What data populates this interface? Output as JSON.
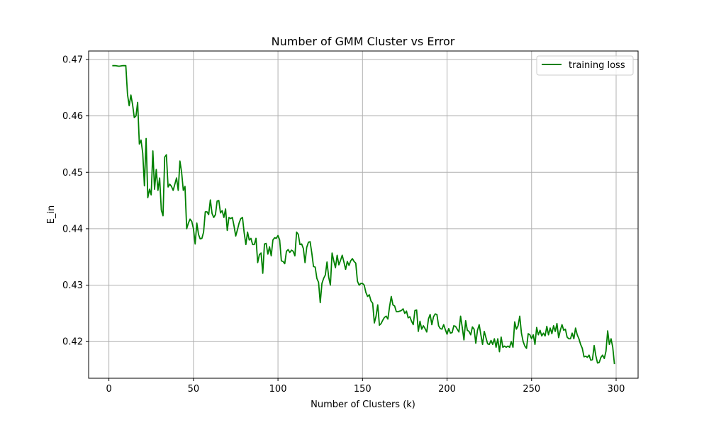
{
  "chart_data": {
    "type": "line",
    "title": "Number of GMM Cluster vs Error",
    "xlabel": "Number of Clusters (k)",
    "ylabel": "E_in",
    "xlim": [
      -12,
      313
    ],
    "ylim": [
      0.4135,
      0.4715
    ],
    "xticks": [
      0,
      50,
      100,
      150,
      200,
      250,
      300
    ],
    "yticks": [
      0.42,
      0.43,
      0.44,
      0.45,
      0.46,
      0.47
    ],
    "ytick_labels": [
      "0.42",
      "0.43",
      "0.44",
      "0.45",
      "0.46",
      "0.47"
    ],
    "grid": true,
    "legend": {
      "position": "top-right",
      "entries": [
        "training loss"
      ]
    },
    "series": [
      {
        "name": "training loss",
        "color": "#008000",
        "points": [
          [
            2,
            0.4689
          ],
          [
            4,
            0.4689
          ],
          [
            6,
            0.4688
          ],
          [
            8,
            0.4689
          ],
          [
            9,
            0.4689
          ],
          [
            10,
            0.4689
          ],
          [
            11,
            0.4638
          ],
          [
            12,
            0.4618
          ],
          [
            13,
            0.4637
          ],
          [
            14,
            0.462
          ],
          [
            15,
            0.4597
          ],
          [
            16,
            0.46
          ],
          [
            17,
            0.4624
          ],
          [
            18,
            0.455
          ],
          [
            19,
            0.4557
          ],
          [
            20,
            0.4534
          ],
          [
            21,
            0.4476
          ],
          [
            22,
            0.456
          ],
          [
            23,
            0.4455
          ],
          [
            24,
            0.447
          ],
          [
            25,
            0.446
          ],
          [
            26,
            0.4538
          ],
          [
            27,
            0.447
          ],
          [
            28,
            0.4505
          ],
          [
            29,
            0.4468
          ],
          [
            30,
            0.449
          ],
          [
            31,
            0.4433
          ],
          [
            32,
            0.4423
          ],
          [
            33,
            0.4527
          ],
          [
            34,
            0.4531
          ],
          [
            35,
            0.4474
          ],
          [
            36,
            0.4479
          ],
          [
            37,
            0.4475
          ],
          [
            38,
            0.4468
          ],
          [
            39,
            0.4479
          ],
          [
            40,
            0.449
          ],
          [
            41,
            0.4468
          ],
          [
            42,
            0.452
          ],
          [
            43,
            0.45
          ],
          [
            44,
            0.4468
          ],
          [
            45,
            0.4475
          ],
          [
            46,
            0.44
          ],
          [
            47,
            0.441
          ],
          [
            48,
            0.4417
          ],
          [
            49,
            0.4413
          ],
          [
            50,
            0.44
          ],
          [
            51,
            0.4373
          ],
          [
            52,
            0.441
          ],
          [
            53,
            0.439
          ],
          [
            54,
            0.4382
          ],
          [
            55,
            0.4383
          ],
          [
            56,
            0.4394
          ],
          [
            57,
            0.443
          ],
          [
            58,
            0.443
          ],
          [
            59,
            0.4425
          ],
          [
            60,
            0.4451
          ],
          [
            61,
            0.4427
          ],
          [
            62,
            0.442
          ],
          [
            63,
            0.4425
          ],
          [
            64,
            0.4449
          ],
          [
            65,
            0.445
          ],
          [
            66,
            0.4428
          ],
          [
            67,
            0.4432
          ],
          [
            68,
            0.442
          ],
          [
            69,
            0.4435
          ],
          [
            70,
            0.4397
          ],
          [
            71,
            0.442
          ],
          [
            72,
            0.4418
          ],
          [
            73,
            0.442
          ],
          [
            74,
            0.4405
          ],
          [
            75,
            0.4387
          ],
          [
            76,
            0.4398
          ],
          [
            77,
            0.441
          ],
          [
            78,
            0.4418
          ],
          [
            79,
            0.442
          ],
          [
            80,
            0.4393
          ],
          [
            81,
            0.4372
          ],
          [
            82,
            0.4394
          ],
          [
            83,
            0.438
          ],
          [
            84,
            0.4383
          ],
          [
            85,
            0.4372
          ],
          [
            86,
            0.4372
          ],
          [
            87,
            0.4383
          ],
          [
            88,
            0.434
          ],
          [
            89,
            0.4354
          ],
          [
            90,
            0.4357
          ],
          [
            91,
            0.4321
          ],
          [
            92,
            0.4373
          ],
          [
            93,
            0.4374
          ],
          [
            94,
            0.4355
          ],
          [
            95,
            0.4368
          ],
          [
            96,
            0.4352
          ],
          [
            97,
            0.438
          ],
          [
            98,
            0.4384
          ],
          [
            99,
            0.4383
          ],
          [
            100,
            0.4388
          ],
          [
            101,
            0.438
          ],
          [
            102,
            0.4343
          ],
          [
            103,
            0.4342
          ],
          [
            104,
            0.4338
          ],
          [
            105,
            0.436
          ],
          [
            106,
            0.4363
          ],
          [
            107,
            0.4358
          ],
          [
            108,
            0.4362
          ],
          [
            109,
            0.436
          ],
          [
            110,
            0.4352
          ],
          [
            111,
            0.4394
          ],
          [
            112,
            0.439
          ],
          [
            113,
            0.4372
          ],
          [
            114,
            0.4373
          ],
          [
            115,
            0.4365
          ],
          [
            116,
            0.434
          ],
          [
            117,
            0.4367
          ],
          [
            118,
            0.4376
          ],
          [
            119,
            0.4377
          ],
          [
            120,
            0.4357
          ],
          [
            121,
            0.4333
          ],
          [
            122,
            0.4332
          ],
          [
            123,
            0.4312
          ],
          [
            124,
            0.4305
          ],
          [
            125,
            0.4269
          ],
          [
            126,
            0.4303
          ],
          [
            127,
            0.4312
          ],
          [
            128,
            0.4318
          ],
          [
            129,
            0.4341
          ],
          [
            130,
            0.4314
          ],
          [
            131,
            0.43
          ],
          [
            132,
            0.4357
          ],
          [
            133,
            0.4343
          ],
          [
            134,
            0.4331
          ],
          [
            135,
            0.4353
          ],
          [
            136,
            0.4336
          ],
          [
            137,
            0.4344
          ],
          [
            138,
            0.4353
          ],
          [
            139,
            0.4341
          ],
          [
            140,
            0.4328
          ],
          [
            141,
            0.4342
          ],
          [
            142,
            0.4335
          ],
          [
            143,
            0.4343
          ],
          [
            144,
            0.4347
          ],
          [
            145,
            0.4342
          ],
          [
            146,
            0.4339
          ],
          [
            147,
            0.4307
          ],
          [
            148,
            0.43
          ],
          [
            149,
            0.4303
          ],
          [
            150,
            0.4303
          ],
          [
            151,
            0.43
          ],
          [
            152,
            0.4287
          ],
          [
            153,
            0.428
          ],
          [
            154,
            0.4283
          ],
          [
            155,
            0.4272
          ],
          [
            156,
            0.4268
          ],
          [
            157,
            0.4233
          ],
          [
            158,
            0.4245
          ],
          [
            159,
            0.4265
          ],
          [
            160,
            0.4229
          ],
          [
            161,
            0.4232
          ],
          [
            162,
            0.4238
          ],
          [
            163,
            0.4243
          ],
          [
            164,
            0.4245
          ],
          [
            165,
            0.424
          ],
          [
            166,
            0.4262
          ],
          [
            167,
            0.428
          ],
          [
            168,
            0.4265
          ],
          [
            169,
            0.4263
          ],
          [
            170,
            0.4253
          ],
          [
            171,
            0.4253
          ],
          [
            172,
            0.4254
          ],
          [
            173,
            0.4255
          ],
          [
            174,
            0.4258
          ],
          [
            175,
            0.425
          ],
          [
            176,
            0.4254
          ],
          [
            177,
            0.4242
          ],
          [
            178,
            0.4244
          ],
          [
            179,
            0.4236
          ],
          [
            180,
            0.423
          ],
          [
            181,
            0.4255
          ],
          [
            182,
            0.4256
          ],
          [
            183,
            0.4218
          ],
          [
            184,
            0.4236
          ],
          [
            185,
            0.4222
          ],
          [
            186,
            0.4228
          ],
          [
            187,
            0.4223
          ],
          [
            188,
            0.4217
          ],
          [
            189,
            0.424
          ],
          [
            190,
            0.4248
          ],
          [
            191,
            0.423
          ],
          [
            192,
            0.4244
          ],
          [
            193,
            0.4249
          ],
          [
            194,
            0.4248
          ],
          [
            195,
            0.4228
          ],
          [
            196,
            0.4223
          ],
          [
            197,
            0.4222
          ],
          [
            198,
            0.423
          ],
          [
            199,
            0.4221
          ],
          [
            200,
            0.4213
          ],
          [
            201,
            0.4223
          ],
          [
            202,
            0.4215
          ],
          [
            203,
            0.4216
          ],
          [
            204,
            0.4228
          ],
          [
            205,
            0.4227
          ],
          [
            206,
            0.4222
          ],
          [
            207,
            0.4217
          ],
          [
            208,
            0.4245
          ],
          [
            209,
            0.4225
          ],
          [
            210,
            0.4203
          ],
          [
            211,
            0.4237
          ],
          [
            212,
            0.422
          ],
          [
            213,
            0.4218
          ],
          [
            214,
            0.4212
          ],
          [
            215,
            0.4226
          ],
          [
            216,
            0.4222
          ],
          [
            217,
            0.4197
          ],
          [
            218,
            0.422
          ],
          [
            219,
            0.423
          ],
          [
            220,
            0.4212
          ],
          [
            221,
            0.4195
          ],
          [
            222,
            0.4218
          ],
          [
            223,
            0.4207
          ],
          [
            224,
            0.4196
          ],
          [
            225,
            0.4195
          ],
          [
            226,
            0.4202
          ],
          [
            227,
            0.4195
          ],
          [
            228,
            0.4205
          ],
          [
            229,
            0.419
          ],
          [
            230,
            0.4205
          ],
          [
            231,
            0.4182
          ],
          [
            232,
            0.4208
          ],
          [
            233,
            0.419
          ],
          [
            234,
            0.4192
          ],
          [
            235,
            0.419
          ],
          [
            236,
            0.4192
          ],
          [
            237,
            0.419
          ],
          [
            238,
            0.42
          ],
          [
            239,
            0.419
          ],
          [
            240,
            0.4235
          ],
          [
            241,
            0.4222
          ],
          [
            242,
            0.4228
          ],
          [
            243,
            0.4245
          ],
          [
            244,
            0.4215
          ],
          [
            245,
            0.42
          ],
          [
            246,
            0.4192
          ],
          [
            247,
            0.4188
          ],
          [
            248,
            0.4214
          ],
          [
            249,
            0.4212
          ],
          [
            250,
            0.4205
          ],
          [
            251,
            0.4212
          ],
          [
            252,
            0.4195
          ],
          [
            253,
            0.4225
          ],
          [
            254,
            0.4212
          ],
          [
            255,
            0.422
          ],
          [
            256,
            0.421
          ],
          [
            257,
            0.4215
          ],
          [
            258,
            0.421
          ],
          [
            259,
            0.4227
          ],
          [
            260,
            0.4212
          ],
          [
            261,
            0.4224
          ],
          [
            262,
            0.4214
          ],
          [
            263,
            0.4228
          ],
          [
            264,
            0.4218
          ],
          [
            265,
            0.4232
          ],
          [
            266,
            0.4207
          ],
          [
            267,
            0.422
          ],
          [
            268,
            0.423
          ],
          [
            269,
            0.422
          ],
          [
            270,
            0.4222
          ],
          [
            271,
            0.4208
          ],
          [
            272,
            0.4205
          ],
          [
            273,
            0.4205
          ],
          [
            274,
            0.4215
          ],
          [
            275,
            0.4205
          ],
          [
            276,
            0.4224
          ],
          [
            277,
            0.4212
          ],
          [
            278,
            0.4205
          ],
          [
            279,
            0.4195
          ],
          [
            280,
            0.4188
          ],
          [
            281,
            0.4173
          ],
          [
            282,
            0.4174
          ],
          [
            283,
            0.4172
          ],
          [
            284,
            0.4176
          ],
          [
            285,
            0.4167
          ],
          [
            286,
            0.4168
          ],
          [
            287,
            0.4193
          ],
          [
            288,
            0.4175
          ],
          [
            289,
            0.4162
          ],
          [
            290,
            0.4163
          ],
          [
            291,
            0.4172
          ],
          [
            292,
            0.4176
          ],
          [
            293,
            0.417
          ],
          [
            294,
            0.4183
          ],
          [
            295,
            0.4219
          ],
          [
            296,
            0.4195
          ],
          [
            297,
            0.4205
          ],
          [
            298,
            0.419
          ],
          [
            299,
            0.416
          ]
        ]
      }
    ]
  }
}
